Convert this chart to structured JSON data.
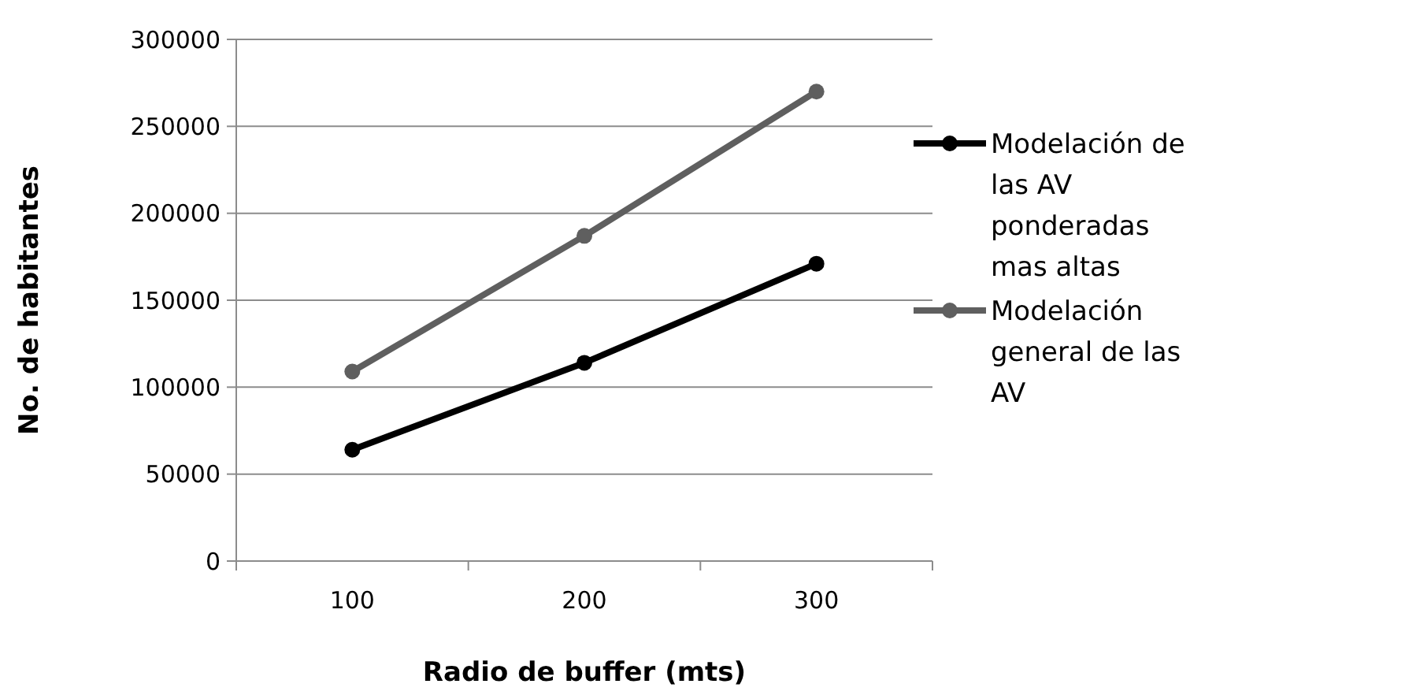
{
  "chart_data": {
    "type": "line",
    "xlabel": "Radio de buffer (mts)",
    "ylabel": "No. de habitantes",
    "categories": [
      "100",
      "200",
      "300"
    ],
    "series": [
      {
        "name": "Modelación de las AV ponderadas mas altas",
        "color": "#000000",
        "values": [
          64000,
          114000,
          171000
        ]
      },
      {
        "name": "Modelación general de las AV",
        "color": "#5f5f5f",
        "values": [
          109000,
          187000,
          270000
        ]
      }
    ],
    "ylim": [
      0,
      300000
    ],
    "yticks": [
      0,
      50000,
      100000,
      150000,
      200000,
      250000,
      300000
    ],
    "grid": "y",
    "legend": "right",
    "marker": "circle",
    "line_style": "solid"
  }
}
